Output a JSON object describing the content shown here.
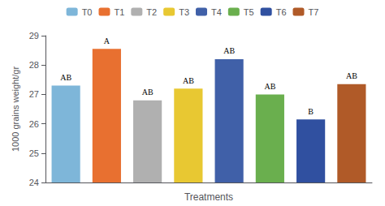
{
  "chart_data": {
    "type": "bar",
    "categories": [
      "T0",
      "T1",
      "T2",
      "T3",
      "T4",
      "T5",
      "T6",
      "T7"
    ],
    "values": [
      27.3,
      28.55,
      26.8,
      27.2,
      28.2,
      27.0,
      26.15,
      27.35
    ],
    "annotations": [
      "AB",
      "A",
      "AB",
      "AB",
      "AB",
      "AB",
      "B",
      "AB"
    ],
    "colors": [
      "#7EB6D9",
      "#E87030",
      "#B0B0B0",
      "#E8C832",
      "#4060A8",
      "#6AAF4E",
      "#3050A0",
      "#B05A28"
    ],
    "xlabel": "Treatments",
    "ylabel": "1000 grains weight/gr",
    "ylim": [
      24,
      29
    ],
    "yticks": [
      24,
      25,
      26,
      27,
      28,
      29
    ],
    "grid": false,
    "legend": "top",
    "tick_labels": "y"
  }
}
